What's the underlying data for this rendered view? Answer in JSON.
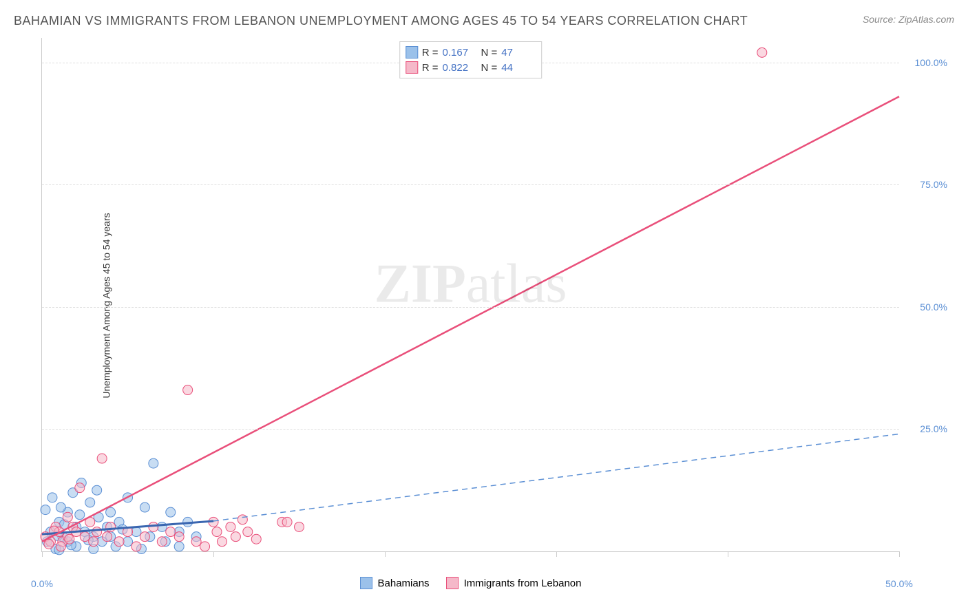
{
  "title": "BAHAMIAN VS IMMIGRANTS FROM LEBANON UNEMPLOYMENT AMONG AGES 45 TO 54 YEARS CORRELATION CHART",
  "source": "Source: ZipAtlas.com",
  "y_axis_label": "Unemployment Among Ages 45 to 54 years",
  "watermark_bold": "ZIP",
  "watermark_rest": "atlas",
  "chart": {
    "type": "scatter",
    "xlim": [
      0,
      50
    ],
    "ylim": [
      0,
      105
    ],
    "x_ticks": [
      0,
      10,
      20,
      30,
      40,
      50
    ],
    "x_tick_labels": [
      "0.0%",
      "",
      "",
      "",
      "",
      "50.0%"
    ],
    "y_ticks": [
      25,
      50,
      75,
      100
    ],
    "y_tick_labels": [
      "25.0%",
      "50.0%",
      "75.0%",
      "100.0%"
    ],
    "grid_color": "#dddddd",
    "background_color": "#ffffff",
    "axis_color": "#cccccc",
    "tick_label_color": "#5b8fd4",
    "marker_radius": 7,
    "marker_opacity": 0.55,
    "series": [
      {
        "name": "Bahamians",
        "color_fill": "#9bc1ea",
        "color_stroke": "#5b8fd4",
        "r_value": "0.167",
        "n_value": "47",
        "trend_line": {
          "x1": 0,
          "y1": 3.5,
          "x2": 10,
          "y2": 6.2,
          "color": "#3a66b0",
          "width": 3,
          "style": "solid"
        },
        "trend_extension": {
          "x1": 10,
          "y1": 6.2,
          "x2": 50,
          "y2": 24.0,
          "color": "#5b8fd4",
          "width": 1.5,
          "style": "dashed"
        },
        "points": [
          [
            0.3,
            2.0
          ],
          [
            0.5,
            4.0
          ],
          [
            0.8,
            0.5
          ],
          [
            1.0,
            6.0
          ],
          [
            1.2,
            3.0
          ],
          [
            1.5,
            8.0
          ],
          [
            1.5,
            2.0
          ],
          [
            1.8,
            12.0
          ],
          [
            2.0,
            5.0
          ],
          [
            2.0,
            1.0
          ],
          [
            2.3,
            14.0
          ],
          [
            2.5,
            4.0
          ],
          [
            2.8,
            10.0
          ],
          [
            3.0,
            3.0
          ],
          [
            3.0,
            0.5
          ],
          [
            3.3,
            7.0
          ],
          [
            3.5,
            2.0
          ],
          [
            3.8,
            5.0
          ],
          [
            4.0,
            8.0
          ],
          [
            4.0,
            3.0
          ],
          [
            4.3,
            1.0
          ],
          [
            4.5,
            6.0
          ],
          [
            5.0,
            11.0
          ],
          [
            5.0,
            2.0
          ],
          [
            5.5,
            4.0
          ],
          [
            5.8,
            0.5
          ],
          [
            6.0,
            9.0
          ],
          [
            6.3,
            3.0
          ],
          [
            6.5,
            18.0
          ],
          [
            7.0,
            5.0
          ],
          [
            7.2,
            2.0
          ],
          [
            7.5,
            8.0
          ],
          [
            8.0,
            1.0
          ],
          [
            8.0,
            4.0
          ],
          [
            8.5,
            6.0
          ],
          [
            9.0,
            3.0
          ],
          [
            0.2,
            8.5
          ],
          [
            1.0,
            0.3
          ],
          [
            1.3,
            5.5
          ],
          [
            2.2,
            7.5
          ],
          [
            0.6,
            11.0
          ],
          [
            3.2,
            12.5
          ],
          [
            4.7,
            4.5
          ],
          [
            1.7,
            1.3
          ],
          [
            0.9,
            3.2
          ],
          [
            2.7,
            2.3
          ],
          [
            1.1,
            9.0
          ]
        ]
      },
      {
        "name": "Immigrants from Lebanon",
        "color_fill": "#f5b8c9",
        "color_stroke": "#e94f7a",
        "r_value": "0.822",
        "n_value": "44",
        "trend_line": {
          "x1": 0,
          "y1": 2.0,
          "x2": 50,
          "y2": 93.0,
          "color": "#e94f7a",
          "width": 2.5,
          "style": "solid"
        },
        "points": [
          [
            0.2,
            3.0
          ],
          [
            0.5,
            2.0
          ],
          [
            0.8,
            5.0
          ],
          [
            1.0,
            4.0
          ],
          [
            1.2,
            2.0
          ],
          [
            1.5,
            7.0
          ],
          [
            1.5,
            3.0
          ],
          [
            1.8,
            5.0
          ],
          [
            2.0,
            4.0
          ],
          [
            2.2,
            13.0
          ],
          [
            2.5,
            3.0
          ],
          [
            2.8,
            6.0
          ],
          [
            3.0,
            2.0
          ],
          [
            3.2,
            4.0
          ],
          [
            3.5,
            19.0
          ],
          [
            3.8,
            3.0
          ],
          [
            4.0,
            5.0
          ],
          [
            4.5,
            2.0
          ],
          [
            5.0,
            4.0
          ],
          [
            5.5,
            1.0
          ],
          [
            6.0,
            3.0
          ],
          [
            6.5,
            5.0
          ],
          [
            7.0,
            2.0
          ],
          [
            7.5,
            4.0
          ],
          [
            8.0,
            3.0
          ],
          [
            8.5,
            33.0
          ],
          [
            9.0,
            2.0
          ],
          [
            9.5,
            1.0
          ],
          [
            10.0,
            6.0
          ],
          [
            10.2,
            4.0
          ],
          [
            10.5,
            2.0
          ],
          [
            11.0,
            5.0
          ],
          [
            11.3,
            3.0
          ],
          [
            11.7,
            6.5
          ],
          [
            12.0,
            4.0
          ],
          [
            12.5,
            2.5
          ],
          [
            14.0,
            6.0
          ],
          [
            14.3,
            6.0
          ],
          [
            15.0,
            5.0
          ],
          [
            0.4,
            1.5
          ],
          [
            1.1,
            1.0
          ],
          [
            0.7,
            4.2
          ],
          [
            42.0,
            102.0
          ],
          [
            1.6,
            2.5
          ]
        ]
      }
    ],
    "legend_top_labels": {
      "r": "R =",
      "n": "N ="
    },
    "legend_bottom": [
      {
        "label": "Bahamians",
        "fill": "#9bc1ea",
        "stroke": "#5b8fd4"
      },
      {
        "label": "Immigrants from Lebanon",
        "fill": "#f5b8c9",
        "stroke": "#e94f7a"
      }
    ]
  }
}
